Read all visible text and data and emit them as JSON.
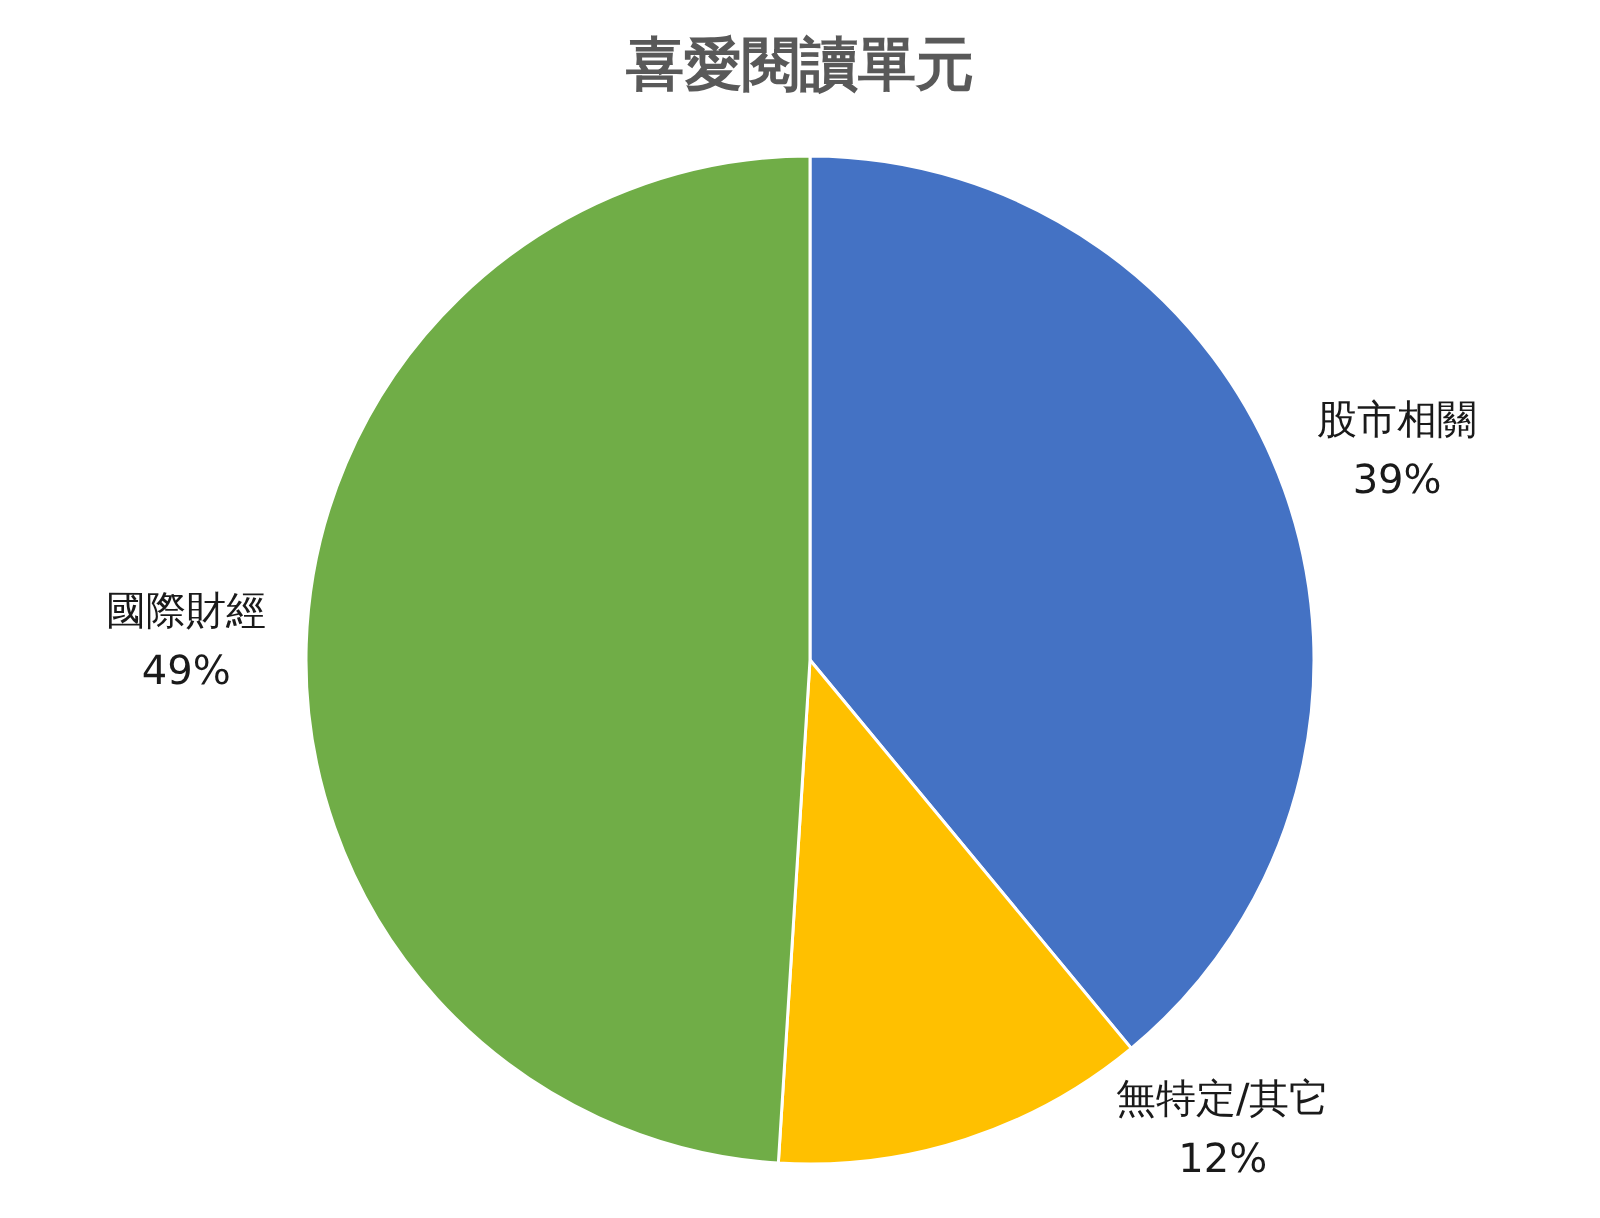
{
  "chart_data": {
    "type": "pie",
    "title": "喜愛閱讀單元",
    "categories": [
      "股市相關",
      "無特定/其它",
      "國際財經"
    ],
    "values": [
      39,
      12,
      49
    ],
    "colors": [
      "#4472c4",
      "#ffc000",
      "#70ad47"
    ],
    "value_labels": [
      "39%",
      "12%",
      "49%"
    ]
  }
}
